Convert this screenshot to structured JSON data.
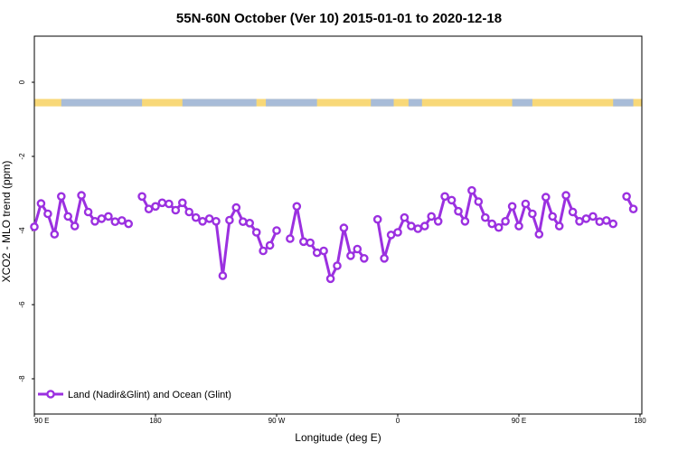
{
  "chart_data": {
    "type": "line",
    "title": "55N-60N October (Ver 10)   2015-01-01 to 2020-12-18",
    "xlabel": "Longitude (deg E)",
    "ylabel": "XCO2 - MLO trend (ppm)",
    "xlim": [
      90,
      450
    ],
    "ylim": [
      -9,
      1.3
    ],
    "x_ticks": [
      {
        "value": 90,
        "label": "90 E"
      },
      {
        "value": 180,
        "label": "180"
      },
      {
        "value": 270,
        "label": "90 W"
      },
      {
        "value": 360,
        "label": "0"
      },
      {
        "value": 450,
        "label": "90 E"
      },
      {
        "value": 540,
        "label": "180"
      }
    ],
    "y_ticks": [
      {
        "value": 0,
        "label": "0"
      },
      {
        "value": -2,
        "label": "-2"
      },
      {
        "value": -4,
        "label": "-4"
      },
      {
        "value": -6,
        "label": "-6"
      },
      {
        "value": -8,
        "label": "-8"
      }
    ],
    "grid": false,
    "legend_position": "bottom-left",
    "land_ocean_band": {
      "y_range": [
        -0.45,
        -0.65
      ],
      "land_color": "#f8d878",
      "ocean_color": "#a8bcd8"
    },
    "series": [
      {
        "name": "Land (Nadir&Glint) and Ocean (Glint)",
        "color": "#9b30e0",
        "points": [
          [
            [
              90,
              -3.9
            ],
            [
              95,
              -3.27
            ],
            [
              100,
              -3.55
            ],
            [
              105,
              -4.1
            ],
            [
              110,
              -3.08
            ],
            [
              115,
              -3.62
            ],
            [
              120,
              -3.88
            ],
            [
              125,
              -3.05
            ],
            [
              130,
              -3.5
            ],
            [
              135,
              -3.75
            ],
            [
              140,
              -3.68
            ],
            [
              145,
              -3.62
            ],
            [
              150,
              -3.76
            ],
            [
              155,
              -3.73
            ],
            [
              160,
              -3.82
            ]
          ],
          [
            [
              170,
              -3.08
            ],
            [
              175,
              -3.42
            ],
            [
              180,
              -3.35
            ],
            [
              185,
              -3.25
            ],
            [
              190,
              -3.28
            ],
            [
              195,
              -3.45
            ],
            [
              200,
              -3.25
            ],
            [
              205,
              -3.5
            ],
            [
              210,
              -3.65
            ],
            [
              215,
              -3.75
            ],
            [
              220,
              -3.68
            ],
            [
              225,
              -3.75
            ],
            [
              230,
              -5.22
            ],
            [
              235,
              -3.72
            ],
            [
              240,
              -3.38
            ],
            [
              245,
              -3.76
            ],
            [
              250,
              -3.8
            ],
            [
              255,
              -4.05
            ],
            [
              260,
              -4.55
            ],
            [
              265,
              -4.4
            ],
            [
              270,
              -4.0
            ]
          ],
          [
            [
              280,
              -4.22
            ],
            [
              285,
              -3.35
            ],
            [
              290,
              -4.3
            ],
            [
              295,
              -4.33
            ],
            [
              300,
              -4.6
            ],
            [
              305,
              -4.55
            ],
            [
              310,
              -5.3
            ],
            [
              315,
              -4.95
            ],
            [
              320,
              -3.93
            ],
            [
              325,
              -4.68
            ],
            [
              330,
              -4.5
            ],
            [
              335,
              -4.75
            ]
          ],
          [
            [
              345,
              -3.7
            ],
            [
              350,
              -4.75
            ],
            [
              355,
              -4.12
            ],
            [
              360,
              -4.05
            ],
            [
              365,
              -3.65
            ],
            [
              370,
              -3.88
            ],
            [
              375,
              -3.95
            ],
            [
              380,
              -3.88
            ],
            [
              385,
              -3.62
            ],
            [
              390,
              -3.75
            ],
            [
              395,
              -3.08
            ],
            [
              400,
              -3.18
            ],
            [
              405,
              -3.48
            ],
            [
              410,
              -3.75
            ],
            [
              415,
              -2.92
            ],
            [
              420,
              -3.22
            ],
            [
              425,
              -3.65
            ],
            [
              430,
              -3.82
            ],
            [
              435,
              -3.92
            ],
            [
              440,
              -3.75
            ],
            [
              445,
              -3.35
            ],
            [
              450,
              -3.88
            ],
            [
              455,
              -3.28
            ],
            [
              460,
              -3.55
            ],
            [
              465,
              -4.1
            ],
            [
              470,
              -3.1
            ],
            [
              475,
              -3.62
            ],
            [
              480,
              -3.88
            ],
            [
              485,
              -3.05
            ],
            [
              490,
              -3.5
            ],
            [
              495,
              -3.75
            ],
            [
              500,
              -3.68
            ],
            [
              505,
              -3.62
            ],
            [
              510,
              -3.76
            ],
            [
              515,
              -3.73
            ],
            [
              520,
              -3.82
            ]
          ],
          [
            [
              530,
              -3.08
            ],
            [
              535,
              -3.42
            ]
          ]
        ]
      }
    ]
  }
}
